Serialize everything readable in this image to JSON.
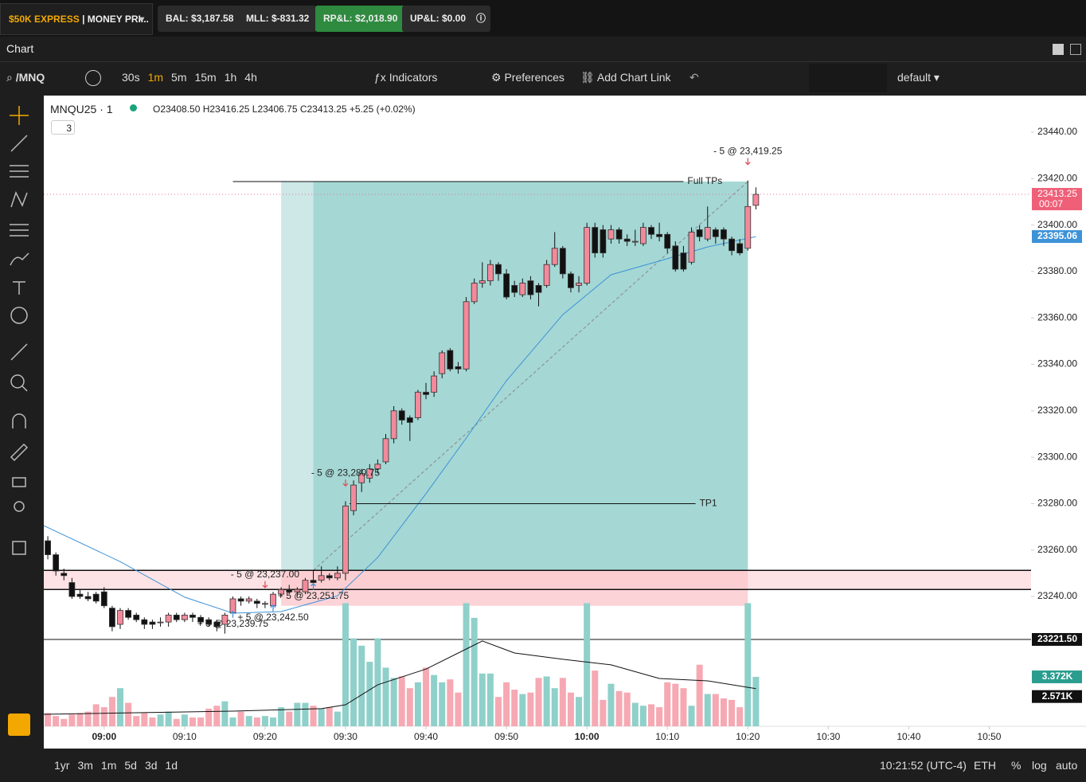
{
  "top_bar": {
    "account_name": "$50K EXPRESS",
    "account_label": "| MONEY PRI...",
    "bal": "BAL: $3,187.58",
    "mll": "MLL: $-831.32",
    "rpl": "RP&L: $2,018.90",
    "upl": "UP&L: $0.00"
  },
  "tab": "Chart",
  "toolbar": {
    "symbol": "/MNQ",
    "intervals": [
      "30s",
      "1m",
      "5m",
      "15m",
      "1h",
      "4h"
    ],
    "indicators": "Indicators",
    "preferences": "Preferences",
    "add_link": "Add Chart Link",
    "layout": "default"
  },
  "legend": {
    "symbol": "MNQU25 · 1",
    "ohlc": "O23408.50 H23416.25 L23406.75 C23413.25 +5.25 (+0.02%)",
    "count": "3"
  },
  "bottom": {
    "ranges": [
      "1yr",
      "3m",
      "1m",
      "5d",
      "3d",
      "1d"
    ],
    "clock": "10:21:52 (UTC-4)",
    "session": "ETH",
    "pct": "%",
    "log": "log",
    "auto": "auto"
  },
  "chart_data": {
    "type": "candlestick",
    "x": [
      533,
      534,
      535,
      536,
      537,
      538,
      539,
      540,
      541,
      542,
      543,
      544,
      545,
      546,
      547,
      548,
      549,
      550,
      551,
      552,
      553,
      554,
      555,
      556,
      557,
      558,
      559,
      560,
      561,
      562,
      563,
      564,
      565,
      566,
      567,
      568,
      569,
      570,
      571,
      572,
      573,
      574,
      575,
      576,
      577,
      578,
      579,
      580,
      581,
      582,
      583,
      584,
      585,
      586,
      587,
      588,
      589,
      590,
      591,
      592,
      593,
      594,
      595,
      596,
      597,
      598,
      599,
      600,
      601,
      602,
      603,
      604,
      605,
      606,
      607,
      608,
      609,
      610,
      611,
      612,
      613,
      614,
      615,
      616,
      617,
      618,
      619,
      620,
      621
    ],
    "open": [
      23264,
      23258,
      23250,
      23246,
      23241,
      23240,
      23241,
      23242,
      23235,
      23228,
      23234,
      23232,
      23230,
      23229,
      23229,
      23229,
      23232,
      23230,
      23232,
      23231,
      23230,
      23229,
      23228,
      23233,
      23239,
      23238,
      23238,
      23237,
      23236,
      23241,
      23243,
      23242,
      23242,
      23247,
      23247,
      23249,
      23248,
      23250,
      23277,
      23289,
      23291,
      23295,
      23298,
      23308,
      23320,
      23317,
      23317,
      23328,
      23328,
      23336,
      23346,
      23339,
      23338,
      23367,
      23375,
      23376,
      23383,
      23379,
      23374,
      23370,
      23376,
      23374,
      23374,
      23383,
      23390,
      23379,
      23374,
      23375,
      23399,
      23398,
      23394,
      23398,
      23394,
      23393,
      23392,
      23399,
      23396,
      23396,
      23391,
      23388,
      23384,
      23398,
      23394,
      23398,
      23398,
      23394,
      23392,
      23390,
      23408.5
    ],
    "high": [
      23266,
      23259,
      23252,
      23248,
      23243,
      23242,
      23242,
      23244,
      23236,
      23235,
      23235,
      23233,
      23231,
      23230,
      23231,
      23233,
      23233,
      23233,
      23233,
      23232,
      23231,
      23230,
      23233,
      23240,
      23240,
      23240,
      23239,
      23238,
      23242,
      23244,
      23245,
      23244,
      23248,
      23251,
      23253,
      23250,
      23253,
      23281,
      23290,
      23295,
      23297,
      23299,
      23310,
      23322,
      23321,
      23318,
      23329,
      23332,
      23337,
      23346,
      23347,
      23341,
      23369,
      23377,
      23384,
      23385,
      23384,
      23381,
      23376,
      23377,
      23378,
      23375,
      23385,
      23397,
      23391,
      23380,
      23378,
      23401,
      23401,
      23400,
      23400,
      23399,
      23396,
      23398,
      23401,
      23400,
      23401,
      23397,
      23393,
      23391,
      23399,
      23400,
      23408,
      23399,
      23399,
      23395,
      23394,
      23419.25,
      23416.25
    ],
    "low": [
      23256,
      23249,
      23247,
      23239,
      23239,
      23238,
      23237,
      23235,
      23225,
      23226,
      23230,
      23229,
      23226,
      23226,
      23227,
      23227,
      23229,
      23229,
      23229,
      23228,
      23227,
      23225,
      23224,
      23232,
      23236,
      23237,
      23235,
      23235,
      23235,
      23240,
      23241,
      23240,
      23241,
      23245,
      23246,
      23247,
      23247,
      23247,
      23275,
      23285,
      23289,
      23293,
      23297,
      23306,
      23314,
      23307,
      23316,
      23325,
      23326,
      23334,
      23337,
      23336,
      23337,
      23366,
      23373,
      23374,
      23376,
      23368,
      23369,
      23369,
      23368,
      23365,
      23373,
      23382,
      23377,
      23371,
      23371,
      23374,
      23386,
      23386,
      23392,
      23392,
      23391,
      23391,
      23391,
      23394,
      23393,
      23388,
      23380,
      23380,
      23383,
      23393,
      23393,
      23392,
      23391,
      23387,
      23387,
      23389,
      23406.75
    ],
    "close": [
      23258,
      23251,
      23249,
      23240,
      23240,
      23239,
      23238,
      23236,
      23227,
      23234,
      23231,
      23230,
      23228,
      23228,
      23229,
      23232,
      23230,
      23232,
      23231,
      23229,
      23228,
      23227,
      23232,
      23239,
      23238,
      23239,
      23237,
      23237,
      23241,
      23243,
      23242,
      23243,
      23247,
      23246,
      23249,
      23248,
      23250,
      23279,
      23288,
      23293,
      23295,
      23297,
      23308,
      23320,
      23316,
      23315,
      23328,
      23327,
      23335,
      23345,
      23338,
      23338,
      23367,
      23375,
      23376,
      23383,
      23379,
      23369,
      23371,
      23375,
      23370,
      23371,
      23383,
      23390,
      23379,
      23373,
      23375,
      23399,
      23388,
      23388,
      23398,
      23394,
      23393,
      23393,
      23399,
      23396,
      23395,
      23390,
      23381,
      23381,
      23397,
      23395,
      23399,
      23395,
      23394,
      23389,
      23388,
      23408,
      23413.25
    ],
    "volume": [
      900,
      700,
      500,
      800,
      900,
      1000,
      1500,
      1300,
      2000,
      2600,
      1600,
      700,
      900,
      600,
      800,
      1000,
      500,
      800,
      600,
      600,
      1200,
      1400,
      1700,
      600,
      1000,
      700,
      600,
      700,
      600,
      1300,
      1000,
      1600,
      1600,
      1400,
      1200,
      1300,
      1000,
      8400,
      6000,
      5500,
      4400,
      6000,
      4000,
      3300,
      3400,
      2600,
      3000,
      4000,
      3500,
      3000,
      3200,
      2300,
      8400,
      7400,
      3600,
      3600,
      2000,
      3000,
      2500,
      2200,
      2300,
      3300,
      3400,
      2600,
      3300,
      2300,
      2000,
      8400,
      3800,
      1800,
      2900,
      2400,
      2300,
      1600,
      1400,
      1500,
      1300,
      3000,
      2900,
      2600,
      1400,
      4200,
      2200,
      2200,
      1900,
      1800,
      1300,
      8400,
      3372
    ],
    "up_color": "#f28a9b",
    "down_color": "#111111",
    "volume_up_color": "#8fd0ca",
    "volume_down_color": "#f6a9b3",
    "ylim": [
      23184.1,
      23455.8
    ],
    "yticks": [
      {
        "value": 23240,
        "label": "23240.00"
      },
      {
        "value": 23260,
        "label": "23260.00"
      },
      {
        "value": 23280,
        "label": "23280.00"
      },
      {
        "value": 23300,
        "label": "23300.00"
      },
      {
        "value": 23320,
        "label": "23320.00"
      },
      {
        "value": 23340,
        "label": "23340.00"
      },
      {
        "value": 23360,
        "label": "23360.00"
      },
      {
        "value": 23380,
        "label": "23380.00"
      },
      {
        "value": 23400,
        "label": "23400.00"
      },
      {
        "value": 23420,
        "label": "23420.00"
      },
      {
        "value": 23440,
        "label": "23440.00"
      }
    ],
    "xlim": [
      532.5,
      655.2
    ],
    "xticks": [
      {
        "value": 540,
        "label": "09:00"
      },
      {
        "value": 550,
        "label": "09:10"
      },
      {
        "value": 560,
        "label": "09:20"
      },
      {
        "value": 570,
        "label": "09:30"
      },
      {
        "value": 580,
        "label": "09:40"
      },
      {
        "value": 590,
        "label": "09:50"
      },
      {
        "value": 600,
        "label": "10:00"
      },
      {
        "value": 610,
        "label": "10:10"
      },
      {
        "value": 620,
        "label": "10:20"
      },
      {
        "value": 630,
        "label": "10:30"
      },
      {
        "value": 640,
        "label": "10:40"
      },
      {
        "value": 650,
        "label": "10:50"
      }
    ],
    "volume_ylim": [
      0,
      10000
    ],
    "ma": {
      "color": "#3d92d8",
      "x": [
        532.5,
        542,
        550,
        556,
        562,
        569,
        574,
        580,
        585,
        590,
        597,
        603,
        610,
        615,
        621
      ],
      "values": [
        23270.5,
        23255,
        23239.7,
        23232.8,
        23233.5,
        23240.3,
        23256.8,
        23284.3,
        23308.3,
        23333,
        23361.4,
        23378.6,
        23385.5,
        23390.6,
        23395.06
      ],
      "tag": "23395.06"
    },
    "volume_ma": {
      "color": "#111111",
      "x": [
        532.5,
        556,
        567,
        570,
        574,
        580,
        585,
        587,
        591,
        597,
        603,
        609,
        615,
        621
      ],
      "values": [
        816,
        1030,
        1200,
        1470,
        2830,
        3900,
        5270,
        5820,
        5000,
        4570,
        4190,
        3260,
        3100,
        2571
      ],
      "tag": "2.571K"
    },
    "volume_tag": "3.372K",
    "last_price": {
      "tag": "23413.25",
      "timer": "00:07"
    },
    "level": {
      "value": 23221.5,
      "label": "23221.50"
    },
    "zone": [
      23251.25,
      23243
    ],
    "position": {
      "x_start": 562,
      "x_split": 566,
      "x_end": 620,
      "target": 23418.75,
      "entry": 23251.25,
      "stop": 23236
    },
    "tp_lines": [
      {
        "label": "Full TPs",
        "value": 23418.75,
        "x": [
          556,
          612
        ]
      },
      {
        "label": "TP1",
        "value": 23280,
        "x": [
          570.5,
          613.5
        ]
      }
    ],
    "fills": [
      {
        "label": "- 5 @ 23,419.25",
        "x": 620,
        "price": 23419.25,
        "side": "sell"
      },
      {
        "label": "- 5 @ 23,280.75",
        "x": 570,
        "price": 23280.75,
        "side": "sell"
      },
      {
        "label": "- 5 @ 23,237.00",
        "x": 560,
        "price": 23237,
        "side": "sell"
      },
      {
        "label": "+ 5 @ 23,251.75",
        "x": 566,
        "price": 23251.75,
        "side": "buy"
      },
      {
        "label": "+ 5 @ 23,242.50",
        "x": 561,
        "price": 23242.5,
        "side": "buy"
      },
      {
        "label": "+ 5 @ 23,239.75",
        "x": 556,
        "price": 23239.75,
        "side": "buy"
      }
    ]
  }
}
